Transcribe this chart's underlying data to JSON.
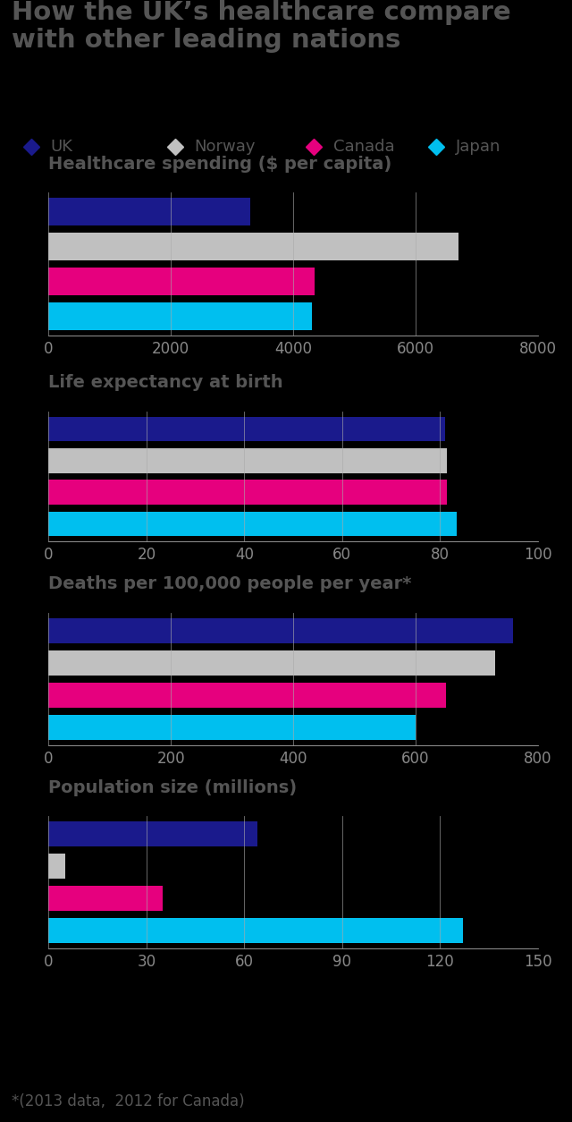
{
  "title": "How the UK’s healthcare compare\nwith other leading nations",
  "legend": {
    "labels": [
      "UK",
      "Norway",
      "Canada",
      "Japan"
    ],
    "colors": [
      "#1a1a8c",
      "#c0c0c0",
      "#e6007e",
      "#00bfef"
    ]
  },
  "charts": [
    {
      "title": "Healthcare spending ($ per capita)",
      "xlim": [
        0,
        8000
      ],
      "xticks": [
        0,
        2000,
        4000,
        6000,
        8000
      ],
      "values": [
        3300,
        6700,
        4350,
        4300
      ]
    },
    {
      "title": "Life expectancy at birth",
      "xlim": [
        0,
        100
      ],
      "xticks": [
        0,
        20,
        40,
        60,
        80,
        100
      ],
      "values": [
        81.0,
        81.4,
        81.5,
        83.4
      ]
    },
    {
      "title": "Deaths per 100,000 people per year*",
      "xlim": [
        0,
        800
      ],
      "xticks": [
        0,
        200,
        400,
        600,
        800
      ],
      "values": [
        760,
        730,
        650,
        600
      ]
    },
    {
      "title": "Population size (millions)",
      "xlim": [
        0,
        150
      ],
      "xticks": [
        0,
        30,
        60,
        90,
        120,
        150
      ],
      "values": [
        64,
        5,
        35,
        127
      ]
    }
  ],
  "footnote": "*(2013 data,  2012 for Canada)",
  "bg_color": "#000000",
  "chart_bg_color": "#000000",
  "title_color": "#555555",
  "bar_colors": [
    "#1a1a8c",
    "#c0c0c0",
    "#e6007e",
    "#00bfef"
  ],
  "grid_color": "#aaaaaa",
  "axis_label_color": "#888888",
  "chart_title_color": "#555555",
  "legend_text_color": "#555555"
}
